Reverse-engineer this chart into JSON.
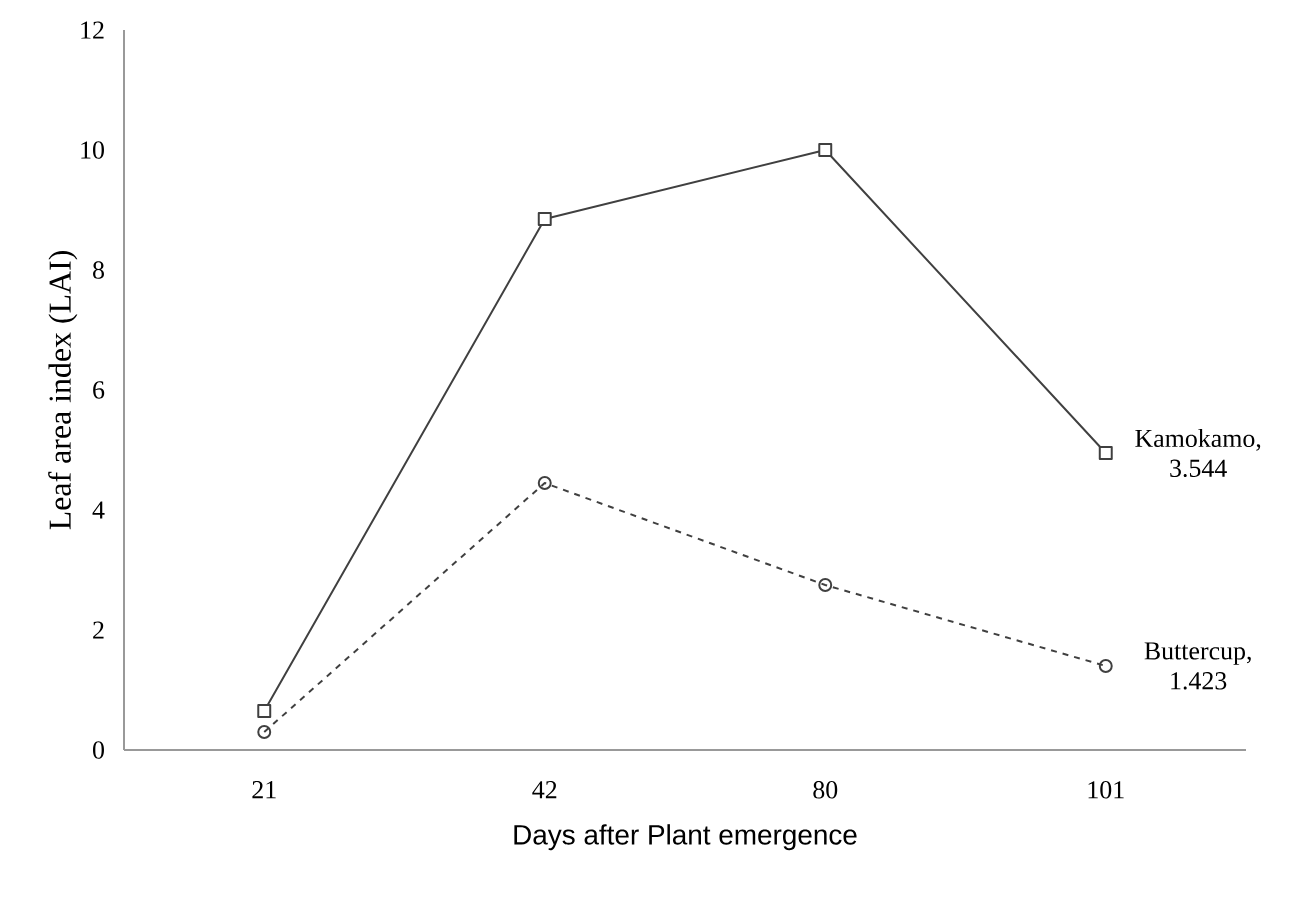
{
  "chart_data": {
    "type": "line",
    "xlabel": "Days after Plant emergence",
    "ylabel": "Leaf area index (LAI)",
    "categories": [
      "21",
      "42",
      "80",
      "101"
    ],
    "series": [
      {
        "color": "#404040",
        "marker": "square",
        "line_style": "solid",
        "values": [
          0.65,
          8.85,
          10.0,
          4.95
        ]
      },
      {
        "color": "#404040",
        "marker": "circle",
        "line_style": "dashed",
        "values": [
          0.3,
          4.45,
          2.75,
          1.4
        ]
      }
    ],
    "ylim": [
      0,
      12
    ],
    "yticks": [
      0,
      2,
      4,
      6,
      8,
      10,
      12
    ],
    "grid": false,
    "annotations": [
      {
        "text": "Kamokamo, 3.544",
        "x": "101",
        "y": 4.95
      },
      {
        "text": "Buttercup, 1.423",
        "x": "101",
        "y": 1.4
      }
    ]
  }
}
